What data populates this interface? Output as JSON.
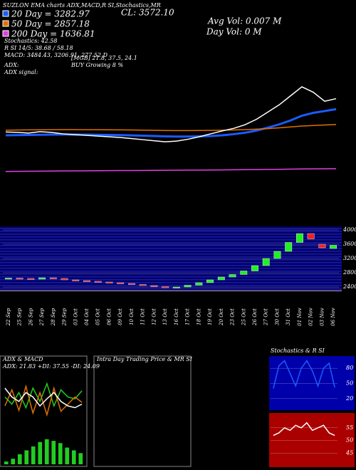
{
  "header": {
    "title": "SUZLON EMA charts ADX,MACD,R SI,Stochastics,MR",
    "close": "CL: 3572.10",
    "avg_vol": "Avg Vol: 0.007 M",
    "day_vol": "Day Vol: 0 M",
    "stochastics": "Stochastics: 42.58",
    "rsi": "R SI 14/5: 38.68 / 58.18",
    "macd": "MACD: 3484.43, 3206.91, 277.52 D",
    "adx": "ADX:",
    "adx_values": "[MGB] 21.8, 37.5, 24.1",
    "adx_signal": "ADX signal:",
    "signal": "BUY Growing 8 %"
  },
  "chart_data": [
    {
      "type": "line",
      "ylim": [
        0,
        6300
      ],
      "series": [
        {
          "name": "20 Day = 3282.97",
          "color": "#1a5cff",
          "values": [
            2560,
            2565,
            2570,
            2575,
            2580,
            2582,
            2580,
            2578,
            2575,
            2570,
            2565,
            2558,
            2550,
            2540,
            2530,
            2525,
            2525,
            2530,
            2540,
            2560,
            2590,
            2630,
            2690,
            2770,
            2860,
            2970,
            3100,
            3180,
            3230,
            3283
          ]
        },
        {
          "name": "50 Day = 2857.18",
          "color": "#e07000",
          "values": [
            2700,
            2705,
            2710,
            2712,
            2715,
            2716,
            2716,
            2715,
            2714,
            2712,
            2710,
            2706,
            2702,
            2698,
            2693,
            2690,
            2690,
            2692,
            2695,
            2700,
            2707,
            2716,
            2728,
            2745,
            2765,
            2790,
            2815,
            2830,
            2845,
            2857
          ]
        },
        {
          "name": "200 Day = 1636.81",
          "color": "#e040e0",
          "values": [
            1560,
            1563,
            1566,
            1568,
            1571,
            1574,
            1576,
            1578,
            1580,
            1582,
            1584,
            1586,
            1588,
            1590,
            1592,
            1594,
            1596,
            1598,
            1600,
            1603,
            1606,
            1609,
            1612,
            1616,
            1620,
            1624,
            1628,
            1631,
            1634,
            1637
          ]
        },
        {
          "color": "#ffffff",
          "values": [
            2650,
            2640,
            2620,
            2660,
            2640,
            2600,
            2580,
            2560,
            2540,
            2520,
            2500,
            2470,
            2440,
            2410,
            2380,
            2400,
            2450,
            2520,
            2600,
            2680,
            2750,
            2850,
            3000,
            3200,
            3400,
            3650,
            3900,
            3750,
            3500,
            3572
          ]
        }
      ]
    },
    {
      "type": "candlestick",
      "ylim": [
        2300,
        4100
      ],
      "yticks": [
        2400,
        2800,
        3200,
        3600,
        4000
      ],
      "categories": [
        "22 Sep",
        "25 Sep",
        "26 Sep",
        "27 Sep",
        "28 Sep",
        "29 Sep",
        "03 Oct",
        "04 Oct",
        "05 Oct",
        "06 Oct",
        "09 Oct",
        "10 Oct",
        "11 Oct",
        "12 Oct",
        "13 Oct",
        "16 Oct",
        "17 Oct",
        "18 Oct",
        "19 Oct",
        "20 Oct",
        "23 Oct",
        "25 Oct",
        "26 Oct",
        "27 Oct",
        "30 Oct",
        "31 Oct",
        "01 Nov",
        "02 Nov",
        "03 Nov",
        "06 Nov"
      ],
      "open": [
        2630,
        2650,
        2640,
        2620,
        2660,
        2640,
        2600,
        2580,
        2560,
        2540,
        2520,
        2500,
        2470,
        2440,
        2410,
        2380,
        2400,
        2450,
        2520,
        2600,
        2680,
        2750,
        2850,
        3000,
        3200,
        3400,
        3650,
        3900,
        3600,
        3480
      ],
      "close": [
        2650,
        2640,
        2620,
        2660,
        2640,
        2600,
        2580,
        2560,
        2540,
        2520,
        2500,
        2470,
        2440,
        2410,
        2380,
        2400,
        2450,
        2520,
        2600,
        2680,
        2750,
        2850,
        3000,
        3200,
        3400,
        3650,
        3900,
        3750,
        3500,
        3572
      ]
    },
    {
      "type": "line",
      "title": "ADX & MACD",
      "subtitle": "ADX: 21.83 +DI: 37.55 -DI: 24.09",
      "ylim": [
        0,
        60
      ],
      "series": [
        {
          "color": "#22cc22",
          "values": [
            30,
            22,
            35,
            18,
            40,
            25,
            45,
            20,
            38,
            30,
            28,
            37
          ]
        },
        {
          "color": "#e07000",
          "values": [
            20,
            38,
            15,
            42,
            12,
            35,
            10,
            40,
            14,
            22,
            30,
            24
          ]
        },
        {
          "color": "#ffffff",
          "values": [
            40,
            30,
            25,
            35,
            30,
            20,
            28,
            35,
            25,
            20,
            18,
            22
          ]
        }
      ]
    },
    {
      "type": "bar",
      "ylim": [
        0,
        60
      ],
      "color": "#22cc22",
      "values": [
        5,
        10,
        18,
        25,
        32,
        40,
        45,
        42,
        38,
        30,
        25,
        20
      ]
    },
    {
      "type": "line",
      "title": "Intra Day Trading Price & MR SI"
    },
    {
      "type": "line",
      "title": "Stochastics & R SI",
      "ylim": [
        0,
        100
      ],
      "yticks": [
        20,
        50,
        80
      ],
      "series": [
        {
          "color": "#1a5cff",
          "values": [
            40,
            85,
            95,
            70,
            45,
            80,
            95,
            75,
            45,
            80,
            90,
            42
          ]
        }
      ]
    },
    {
      "type": "line",
      "ylim": [
        40,
        60
      ],
      "yticks": [
        45,
        50,
        55
      ],
      "series": [
        {
          "color": "#ffffff",
          "values": [
            52,
            53,
            55,
            54,
            56,
            55,
            57,
            54,
            55,
            56,
            53,
            52
          ]
        }
      ]
    }
  ]
}
